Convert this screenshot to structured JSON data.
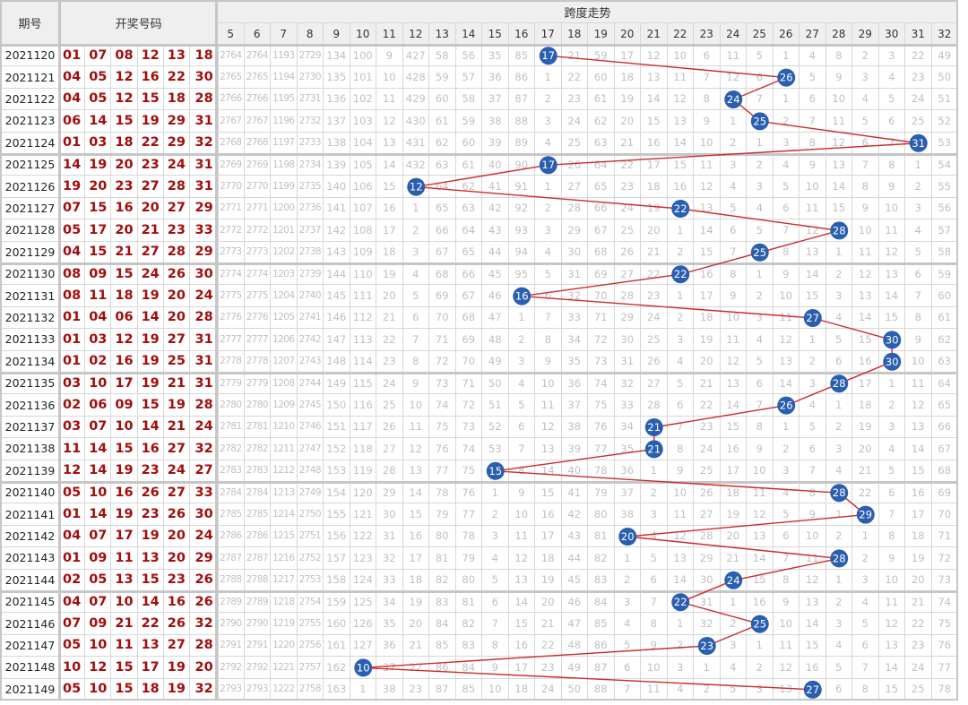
{
  "header": {
    "issue_label": "期号",
    "numbers_label": "开奖号码",
    "span_label": "跨度走势"
  },
  "colors": {
    "ball": "#2a5fb0",
    "line": "#cc2a2a",
    "number": "#a30d0d"
  },
  "span_columns": [
    "5",
    "6",
    "7",
    "8",
    "9",
    "10",
    "11",
    "12",
    "13",
    "14",
    "15",
    "16",
    "17",
    "18",
    "19",
    "20",
    "21",
    "22",
    "23",
    "24",
    "25",
    "26",
    "27",
    "28",
    "29",
    "30",
    "31",
    "32"
  ],
  "chart_data": {
    "type": "line",
    "title": "跨度走势",
    "xlabel": "期号",
    "ylabel": "跨度",
    "x": [
      "2021120",
      "2021121",
      "2021122",
      "2021123",
      "2021124",
      "2021125",
      "2021126",
      "2021127",
      "2021128",
      "2021129",
      "2021130",
      "2021131",
      "2021132",
      "2021133",
      "2021134",
      "2021135",
      "2021136",
      "2021137",
      "2021138",
      "2021139",
      "2021140",
      "2021141",
      "2021142",
      "2021143",
      "2021144",
      "2021145",
      "2021146",
      "2021147",
      "2021148",
      "2021149"
    ],
    "series": [
      {
        "values": [
          17,
          26,
          24,
          25,
          31,
          17,
          12,
          22,
          28,
          25,
          22,
          16,
          27,
          30,
          30,
          28,
          26,
          21,
          21,
          15,
          28,
          29,
          20,
          28,
          24,
          22,
          25,
          23,
          10,
          27
        ]
      }
    ],
    "ylim": [
      5,
      32
    ]
  },
  "rows": [
    {
      "issue": "2021120",
      "numbers": [
        "01",
        "07",
        "08",
        "12",
        "13",
        "18"
      ],
      "cells": [
        "2764",
        "2764",
        "1193",
        "2729",
        "134",
        "100",
        "9",
        "427",
        "58",
        "56",
        "35",
        "85",
        "17",
        "21",
        "59",
        "17",
        "12",
        "10",
        "6",
        "11",
        "5",
        "1",
        "4",
        "8",
        "2",
        "3",
        "22",
        "49"
      ]
    },
    {
      "issue": "2021121",
      "numbers": [
        "04",
        "05",
        "12",
        "16",
        "22",
        "30"
      ],
      "cells": [
        "2765",
        "2765",
        "1194",
        "2730",
        "135",
        "101",
        "10",
        "428",
        "59",
        "57",
        "36",
        "86",
        "1",
        "22",
        "60",
        "18",
        "13",
        "11",
        "7",
        "12",
        "6",
        "26",
        "5",
        "9",
        "3",
        "4",
        "23",
        "50"
      ]
    },
    {
      "issue": "2021122",
      "numbers": [
        "04",
        "05",
        "12",
        "15",
        "18",
        "28"
      ],
      "cells": [
        "2766",
        "2766",
        "1195",
        "2731",
        "136",
        "102",
        "11",
        "429",
        "60",
        "58",
        "37",
        "87",
        "2",
        "23",
        "61",
        "19",
        "14",
        "12",
        "8",
        "24",
        "7",
        "1",
        "6",
        "10",
        "4",
        "5",
        "24",
        "51"
      ]
    },
    {
      "issue": "2021123",
      "numbers": [
        "06",
        "14",
        "15",
        "19",
        "29",
        "31"
      ],
      "cells": [
        "2767",
        "2767",
        "1196",
        "2732",
        "137",
        "103",
        "12",
        "430",
        "61",
        "59",
        "38",
        "88",
        "3",
        "24",
        "62",
        "20",
        "15",
        "13",
        "9",
        "1",
        "25",
        "2",
        "7",
        "11",
        "5",
        "6",
        "25",
        "52"
      ]
    },
    {
      "issue": "2021124",
      "numbers": [
        "01",
        "03",
        "18",
        "22",
        "29",
        "32"
      ],
      "cells": [
        "2768",
        "2768",
        "1197",
        "2733",
        "138",
        "104",
        "13",
        "431",
        "62",
        "60",
        "39",
        "89",
        "4",
        "25",
        "63",
        "21",
        "16",
        "14",
        "10",
        "2",
        "1",
        "3",
        "8",
        "12",
        "6",
        "7",
        "31",
        "53"
      ]
    },
    {
      "issue": "2021125",
      "numbers": [
        "14",
        "19",
        "20",
        "23",
        "24",
        "31"
      ],
      "cells": [
        "2769",
        "2769",
        "1198",
        "2734",
        "139",
        "105",
        "14",
        "432",
        "63",
        "61",
        "40",
        "90",
        "17",
        "26",
        "64",
        "22",
        "17",
        "15",
        "11",
        "3",
        "2",
        "4",
        "9",
        "13",
        "7",
        "8",
        "1",
        "54"
      ]
    },
    {
      "issue": "2021126",
      "numbers": [
        "19",
        "20",
        "23",
        "27",
        "28",
        "31"
      ],
      "cells": [
        "2770",
        "2770",
        "1199",
        "2735",
        "140",
        "106",
        "15",
        "12",
        "64",
        "62",
        "41",
        "91",
        "1",
        "27",
        "65",
        "23",
        "18",
        "16",
        "12",
        "4",
        "3",
        "5",
        "10",
        "14",
        "8",
        "9",
        "2",
        "55"
      ]
    },
    {
      "issue": "2021127",
      "numbers": [
        "07",
        "15",
        "16",
        "20",
        "27",
        "29"
      ],
      "cells": [
        "2771",
        "2771",
        "1200",
        "2736",
        "141",
        "107",
        "16",
        "1",
        "65",
        "63",
        "42",
        "92",
        "2",
        "28",
        "66",
        "24",
        "19",
        "22",
        "13",
        "5",
        "4",
        "6",
        "11",
        "15",
        "9",
        "10",
        "3",
        "56"
      ]
    },
    {
      "issue": "2021128",
      "numbers": [
        "05",
        "17",
        "20",
        "21",
        "23",
        "33"
      ],
      "cells": [
        "2772",
        "2772",
        "1201",
        "2737",
        "142",
        "108",
        "17",
        "2",
        "66",
        "64",
        "43",
        "93",
        "3",
        "29",
        "67",
        "25",
        "20",
        "1",
        "14",
        "6",
        "5",
        "7",
        "12",
        "28",
        "10",
        "11",
        "4",
        "57"
      ]
    },
    {
      "issue": "2021129",
      "numbers": [
        "04",
        "15",
        "21",
        "27",
        "28",
        "29"
      ],
      "cells": [
        "2773",
        "2773",
        "1202",
        "2738",
        "143",
        "109",
        "18",
        "3",
        "67",
        "65",
        "44",
        "94",
        "4",
        "30",
        "68",
        "26",
        "21",
        "2",
        "15",
        "7",
        "25",
        "8",
        "13",
        "1",
        "11",
        "12",
        "5",
        "58"
      ]
    },
    {
      "issue": "2021130",
      "numbers": [
        "08",
        "09",
        "15",
        "24",
        "26",
        "30"
      ],
      "cells": [
        "2774",
        "2774",
        "1203",
        "2739",
        "144",
        "110",
        "19",
        "4",
        "68",
        "66",
        "45",
        "95",
        "5",
        "31",
        "69",
        "27",
        "22",
        "22",
        "16",
        "8",
        "1",
        "9",
        "14",
        "2",
        "12",
        "13",
        "6",
        "59"
      ]
    },
    {
      "issue": "2021131",
      "numbers": [
        "08",
        "11",
        "18",
        "19",
        "20",
        "24"
      ],
      "cells": [
        "2775",
        "2775",
        "1204",
        "2740",
        "145",
        "111",
        "20",
        "5",
        "69",
        "67",
        "46",
        "16",
        "6",
        "32",
        "70",
        "28",
        "23",
        "1",
        "17",
        "9",
        "2",
        "10",
        "15",
        "3",
        "13",
        "14",
        "7",
        "60"
      ]
    },
    {
      "issue": "2021132",
      "numbers": [
        "01",
        "04",
        "06",
        "14",
        "20",
        "28"
      ],
      "cells": [
        "2776",
        "2776",
        "1205",
        "2741",
        "146",
        "112",
        "21",
        "6",
        "70",
        "68",
        "47",
        "1",
        "7",
        "33",
        "71",
        "29",
        "24",
        "2",
        "18",
        "10",
        "3",
        "11",
        "27",
        "4",
        "14",
        "15",
        "8",
        "61"
      ]
    },
    {
      "issue": "2021133",
      "numbers": [
        "01",
        "03",
        "12",
        "19",
        "27",
        "31"
      ],
      "cells": [
        "2777",
        "2777",
        "1206",
        "2742",
        "147",
        "113",
        "22",
        "7",
        "71",
        "69",
        "48",
        "2",
        "8",
        "34",
        "72",
        "30",
        "25",
        "3",
        "19",
        "11",
        "4",
        "12",
        "1",
        "5",
        "15",
        "30",
        "9",
        "62"
      ]
    },
    {
      "issue": "2021134",
      "numbers": [
        "01",
        "02",
        "16",
        "19",
        "25",
        "31"
      ],
      "cells": [
        "2778",
        "2778",
        "1207",
        "2743",
        "148",
        "114",
        "23",
        "8",
        "72",
        "70",
        "49",
        "3",
        "9",
        "35",
        "73",
        "31",
        "26",
        "4",
        "20",
        "12",
        "5",
        "13",
        "2",
        "6",
        "16",
        "30",
        "10",
        "63"
      ]
    },
    {
      "issue": "2021135",
      "numbers": [
        "03",
        "10",
        "17",
        "19",
        "21",
        "31"
      ],
      "cells": [
        "2779",
        "2779",
        "1208",
        "2744",
        "149",
        "115",
        "24",
        "9",
        "73",
        "71",
        "50",
        "4",
        "10",
        "36",
        "74",
        "32",
        "27",
        "5",
        "21",
        "13",
        "6",
        "14",
        "3",
        "28",
        "17",
        "1",
        "11",
        "64"
      ]
    },
    {
      "issue": "2021136",
      "numbers": [
        "02",
        "06",
        "09",
        "15",
        "19",
        "28"
      ],
      "cells": [
        "2780",
        "2780",
        "1209",
        "2745",
        "150",
        "116",
        "25",
        "10",
        "74",
        "72",
        "51",
        "5",
        "11",
        "37",
        "75",
        "33",
        "28",
        "6",
        "22",
        "14",
        "7",
        "26",
        "4",
        "1",
        "18",
        "2",
        "12",
        "65"
      ]
    },
    {
      "issue": "2021137",
      "numbers": [
        "03",
        "07",
        "10",
        "14",
        "21",
        "24"
      ],
      "cells": [
        "2781",
        "2781",
        "1210",
        "2746",
        "151",
        "117",
        "26",
        "11",
        "75",
        "73",
        "52",
        "6",
        "12",
        "38",
        "76",
        "34",
        "21",
        "7",
        "23",
        "15",
        "8",
        "1",
        "5",
        "2",
        "19",
        "3",
        "13",
        "66"
      ]
    },
    {
      "issue": "2021138",
      "numbers": [
        "11",
        "14",
        "15",
        "16",
        "27",
        "32"
      ],
      "cells": [
        "2782",
        "2782",
        "1211",
        "2747",
        "152",
        "118",
        "27",
        "12",
        "76",
        "74",
        "53",
        "7",
        "13",
        "39",
        "77",
        "35",
        "21",
        "8",
        "24",
        "16",
        "9",
        "2",
        "6",
        "3",
        "20",
        "4",
        "14",
        "67"
      ]
    },
    {
      "issue": "2021139",
      "numbers": [
        "12",
        "14",
        "19",
        "23",
        "24",
        "27"
      ],
      "cells": [
        "2783",
        "2783",
        "1212",
        "2748",
        "153",
        "119",
        "28",
        "13",
        "77",
        "75",
        "15",
        "8",
        "14",
        "40",
        "78",
        "36",
        "1",
        "9",
        "25",
        "17",
        "10",
        "3",
        "7",
        "4",
        "21",
        "5",
        "15",
        "68"
      ]
    },
    {
      "issue": "2021140",
      "numbers": [
        "05",
        "10",
        "16",
        "26",
        "27",
        "33"
      ],
      "cells": [
        "2784",
        "2784",
        "1213",
        "2749",
        "154",
        "120",
        "29",
        "14",
        "78",
        "76",
        "1",
        "9",
        "15",
        "41",
        "79",
        "37",
        "2",
        "10",
        "26",
        "18",
        "11",
        "4",
        "8",
        "28",
        "22",
        "6",
        "16",
        "69"
      ]
    },
    {
      "issue": "2021141",
      "numbers": [
        "01",
        "14",
        "19",
        "23",
        "26",
        "30"
      ],
      "cells": [
        "2785",
        "2785",
        "1214",
        "2750",
        "155",
        "121",
        "30",
        "15",
        "79",
        "77",
        "2",
        "10",
        "16",
        "42",
        "80",
        "38",
        "3",
        "11",
        "27",
        "19",
        "12",
        "5",
        "9",
        "1",
        "29",
        "7",
        "17",
        "70"
      ]
    },
    {
      "issue": "2021142",
      "numbers": [
        "04",
        "07",
        "17",
        "19",
        "20",
        "24"
      ],
      "cells": [
        "2786",
        "2786",
        "1215",
        "2751",
        "156",
        "122",
        "31",
        "16",
        "80",
        "78",
        "3",
        "11",
        "17",
        "43",
        "81",
        "20",
        "4",
        "12",
        "28",
        "20",
        "13",
        "6",
        "10",
        "2",
        "1",
        "8",
        "18",
        "71"
      ]
    },
    {
      "issue": "2021143",
      "numbers": [
        "01",
        "09",
        "11",
        "13",
        "20",
        "29"
      ],
      "cells": [
        "2787",
        "2787",
        "1216",
        "2752",
        "157",
        "123",
        "32",
        "17",
        "81",
        "79",
        "4",
        "12",
        "18",
        "44",
        "82",
        "1",
        "5",
        "13",
        "29",
        "21",
        "14",
        "7",
        "11",
        "28",
        "2",
        "9",
        "19",
        "72"
      ]
    },
    {
      "issue": "2021144",
      "numbers": [
        "02",
        "05",
        "13",
        "15",
        "23",
        "26"
      ],
      "cells": [
        "2788",
        "2788",
        "1217",
        "2753",
        "158",
        "124",
        "33",
        "18",
        "82",
        "80",
        "5",
        "13",
        "19",
        "45",
        "83",
        "2",
        "6",
        "14",
        "30",
        "24",
        "15",
        "8",
        "12",
        "1",
        "3",
        "10",
        "20",
        "73"
      ]
    },
    {
      "issue": "2021145",
      "numbers": [
        "04",
        "07",
        "10",
        "14",
        "16",
        "26"
      ],
      "cells": [
        "2789",
        "2789",
        "1218",
        "2754",
        "159",
        "125",
        "34",
        "19",
        "83",
        "81",
        "6",
        "14",
        "20",
        "46",
        "84",
        "3",
        "7",
        "22",
        "31",
        "1",
        "16",
        "9",
        "13",
        "2",
        "4",
        "11",
        "21",
        "74"
      ]
    },
    {
      "issue": "2021146",
      "numbers": [
        "07",
        "09",
        "21",
        "22",
        "26",
        "32"
      ],
      "cells": [
        "2790",
        "2790",
        "1219",
        "2755",
        "160",
        "126",
        "35",
        "20",
        "84",
        "82",
        "7",
        "15",
        "21",
        "47",
        "85",
        "4",
        "8",
        "1",
        "32",
        "2",
        "25",
        "10",
        "14",
        "3",
        "5",
        "12",
        "22",
        "75"
      ]
    },
    {
      "issue": "2021147",
      "numbers": [
        "05",
        "10",
        "11",
        "13",
        "27",
        "28"
      ],
      "cells": [
        "2791",
        "2791",
        "1220",
        "2756",
        "161",
        "127",
        "36",
        "21",
        "85",
        "83",
        "8",
        "16",
        "22",
        "48",
        "86",
        "5",
        "9",
        "2",
        "23",
        "3",
        "1",
        "11",
        "15",
        "4",
        "6",
        "13",
        "23",
        "76"
      ]
    },
    {
      "issue": "2021148",
      "numbers": [
        "10",
        "12",
        "15",
        "17",
        "19",
        "20"
      ],
      "cells": [
        "2792",
        "2792",
        "1221",
        "2757",
        "162",
        "10",
        "37",
        "22",
        "86",
        "84",
        "9",
        "17",
        "23",
        "49",
        "87",
        "6",
        "10",
        "3",
        "1",
        "4",
        "2",
        "12",
        "16",
        "5",
        "7",
        "14",
        "24",
        "77"
      ]
    },
    {
      "issue": "2021149",
      "numbers": [
        "05",
        "10",
        "15",
        "18",
        "19",
        "32"
      ],
      "cells": [
        "2793",
        "2793",
        "1222",
        "2758",
        "163",
        "1",
        "38",
        "23",
        "87",
        "85",
        "10",
        "18",
        "24",
        "50",
        "88",
        "7",
        "11",
        "4",
        "2",
        "5",
        "3",
        "13",
        "27",
        "6",
        "8",
        "15",
        "25",
        "78"
      ]
    }
  ]
}
